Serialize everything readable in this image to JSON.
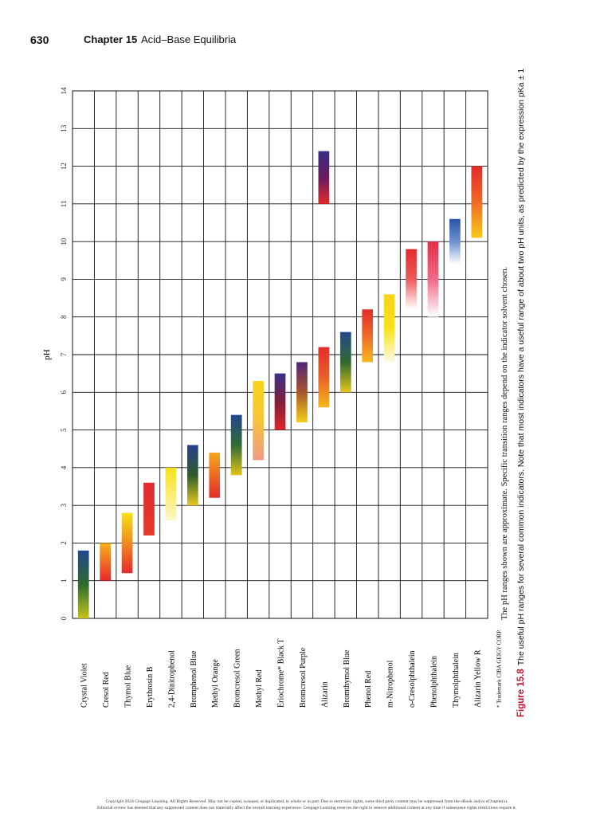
{
  "header": {
    "page_number": "630",
    "chapter": "Chapter 15",
    "title": "Acid–Base Equilibria"
  },
  "chart_data": {
    "type": "bar",
    "ylabel": "pH",
    "ylim": [
      0,
      14
    ],
    "ticks": [
      "0",
      "1",
      "2",
      "3",
      "4",
      "5",
      "6",
      "7",
      "8",
      "9",
      "10",
      "11",
      "12",
      "13",
      "14"
    ],
    "indicators": [
      {
        "name": "Crystal Violet",
        "low": 0.0,
        "high": 1.8,
        "colors": [
          "#c6c21f",
          "#2c6b2d",
          "#23478f"
        ]
      },
      {
        "name": "Cresol Red",
        "low": 1.0,
        "high": 2.0,
        "colors": [
          "#e8282a",
          "#f7b21b"
        ]
      },
      {
        "name": "Thymol Blue",
        "low": 1.2,
        "high": 2.8,
        "colors": [
          "#e52a2a",
          "#f08a1f",
          "#f8e014"
        ]
      },
      {
        "name": "Erythrosin B",
        "low": 2.2,
        "high": 3.6,
        "colors": [
          "#e43c2a",
          "#e02a2f"
        ]
      },
      {
        "name": "2,4-Dinitrophenol",
        "low": 2.6,
        "high": 4.0,
        "colors": [
          "#fbf7c9",
          "#f7e21a"
        ]
      },
      {
        "name": "Bromphenol Blue",
        "low": 3.0,
        "high": 4.6,
        "colors": [
          "#e8c81e",
          "#2d5b2b",
          "#263f8f"
        ]
      },
      {
        "name": "Methyl Orange",
        "low": 3.2,
        "high": 4.4,
        "colors": [
          "#e32c2b",
          "#f4a81d"
        ]
      },
      {
        "name": "Bromcresol Green",
        "low": 3.8,
        "high": 5.4,
        "colors": [
          "#e2c21c",
          "#2f6b33",
          "#24458e"
        ]
      },
      {
        "name": "Methyl Red",
        "low": 4.2,
        "high": 6.3,
        "colors": [
          "#ef9a86",
          "#f6c33a",
          "#f8d41a"
        ]
      },
      {
        "name": "Eriochrome* Black T",
        "low": 5.0,
        "high": 6.5,
        "colors": [
          "#e0242a",
          "#7e1e3a",
          "#3b2f8a"
        ]
      },
      {
        "name": "Bromcresol Purple",
        "low": 5.2,
        "high": 6.8,
        "colors": [
          "#f4cf19",
          "#a8572b",
          "#512478"
        ]
      },
      {
        "name": "Alizarin",
        "low": 5.6,
        "high": 7.2,
        "colors": [
          "#f6b61c",
          "#e8602a",
          "#e32e2b"
        ]
      },
      {
        "name": "Alizarin",
        "low": 11.0,
        "high": 12.4,
        "colors": [
          "#e02a2a",
          "#6a1a5e",
          "#3a2e86"
        ]
      },
      {
        "name": "Bromthymol Blue",
        "low": 6.0,
        "high": 7.6,
        "colors": [
          "#e6c41e",
          "#2f6b2f",
          "#25468f"
        ]
      },
      {
        "name": "Phenol Red",
        "low": 6.8,
        "high": 8.2,
        "colors": [
          "#f6b81d",
          "#ee6a2a",
          "#e42b2b"
        ]
      },
      {
        "name": "m-Nitrophenol",
        "low": 6.8,
        "high": 8.6,
        "colors": [
          "#fbfae6",
          "#f8e21a",
          "#f6d31a"
        ]
      },
      {
        "name": "o-Cresolphthalein",
        "low": 8.2,
        "high": 9.8,
        "colors": [
          "#ffffff",
          "#ee5a5a",
          "#e52a2c"
        ]
      },
      {
        "name": "Phenolphthalein",
        "low": 8.0,
        "high": 10.0,
        "colors": [
          "#ffffff",
          "#f06a8a",
          "#e52d48"
        ]
      },
      {
        "name": "Thymolphthalein",
        "low": 9.4,
        "high": 10.6,
        "colors": [
          "#ffffff",
          "#6d8fd0",
          "#2a55a8"
        ]
      },
      {
        "name": "Alizarin Yellow R",
        "low": 10.1,
        "high": 12.0,
        "colors": [
          "#f7c81b",
          "#ef6a26",
          "#e32a2a"
        ]
      }
    ],
    "row_labels": [
      "Crystal Violet",
      "Cresol Red",
      "Thymol Blue",
      "Erythrosin B",
      "2,4-Dinitrophenol",
      "Bromphenol Blue",
      "Methyl Orange",
      "Bromcresol Green",
      "Methyl Red",
      "Eriochrome* Black T",
      "Bromcresol Purple",
      "Alizarin",
      "Bromthymol Blue",
      "Phenol Red",
      "m-Nitrophenol",
      "o-Cresolphthalein",
      "Phenolphthalein",
      "Thymolphthalein",
      "Alizarin Yellow R"
    ],
    "trademark": "* Trademark CIBA GEIGY CORP."
  },
  "notes": {
    "approx": "The pH ranges shown are approximate. Specific transition ranges depend on the indicator solvent chosen."
  },
  "caption": {
    "figure_label": "Figure 15.8",
    "text": "The useful pH ranges for several common indicators. Note that most indicators have a useful range of about two pH units, as predicted by the expression pKa ± 1"
  },
  "footer": {
    "line1": "Copyright 2024 Cengage Learning. All Rights Reserved. May not be copied, scanned, or duplicated, in whole or in part. Due to electronic rights, some third party content may be suppressed from the eBook and/or eChapter(s).",
    "line2": "Editorial review has deemed that any suppressed content does not materially affect the overall learning experience. Cengage Learning reserves the right to remove additional content at any time if subsequent rights restrictions require it."
  }
}
